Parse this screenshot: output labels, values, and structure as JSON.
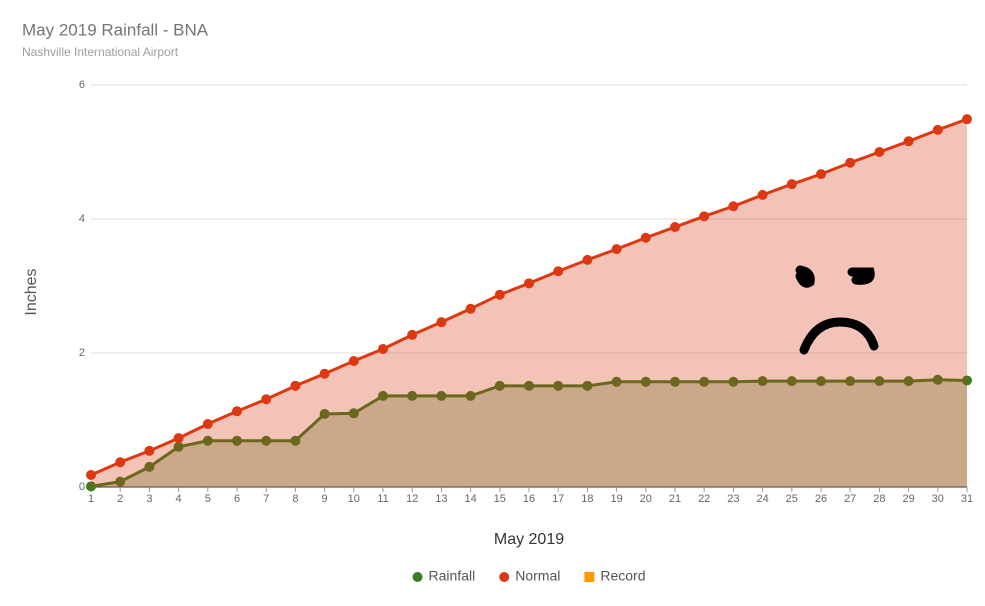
{
  "chart_data": {
    "type": "area",
    "title": "May 2019 Rainfall - BNA",
    "subtitle": "Nashville International Airport",
    "x_label": "May 2019",
    "y_label": "Inches",
    "x": [
      1,
      2,
      3,
      4,
      5,
      6,
      7,
      8,
      9,
      10,
      11,
      12,
      13,
      14,
      15,
      16,
      17,
      18,
      19,
      20,
      21,
      22,
      23,
      24,
      25,
      26,
      27,
      28,
      29,
      30,
      31
    ],
    "xlim": [
      1,
      31
    ],
    "xticks": [
      1,
      2,
      3,
      4,
      5,
      6,
      7,
      8,
      9,
      10,
      11,
      12,
      13,
      14,
      15,
      16,
      17,
      18,
      19,
      20,
      21,
      22,
      23,
      24,
      25,
      26,
      27,
      28,
      29,
      30,
      31
    ],
    "ylim": [
      0,
      6
    ],
    "yticks": [
      0,
      2,
      4,
      6
    ],
    "grid": true,
    "legend": "bottom",
    "series": [
      {
        "name": "Rainfall",
        "color": "#3b7d23",
        "values": [
          0.01,
          0.08,
          0.3,
          0.6,
          0.69,
          0.69,
          0.69,
          0.69,
          1.09,
          1.1,
          1.36,
          1.36,
          1.36,
          1.36,
          1.51,
          1.51,
          1.51,
          1.51,
          1.57,
          1.57,
          1.57,
          1.57,
          1.57,
          1.58,
          1.58,
          1.58,
          1.58,
          1.58,
          1.58,
          1.6,
          1.59
        ]
      },
      {
        "name": "Normal",
        "color": "#dc3912",
        "values": [
          0.18,
          0.37,
          0.54,
          0.73,
          0.94,
          1.13,
          1.31,
          1.51,
          1.69,
          1.88,
          2.06,
          2.27,
          2.46,
          2.66,
          2.87,
          3.04,
          3.22,
          3.39,
          3.55,
          3.72,
          3.88,
          4.04,
          4.19,
          4.36,
          4.52,
          4.67,
          4.84,
          5.0,
          5.16,
          5.33,
          5.49
        ]
      },
      {
        "name": "Record",
        "color": "#ff9900",
        "values": [
          null,
          null,
          null,
          null,
          null,
          null,
          null,
          null,
          null,
          null,
          null,
          null,
          null,
          null,
          null,
          null,
          null,
          null,
          null,
          null,
          null,
          null,
          null,
          null,
          null,
          null,
          null,
          null,
          null,
          null,
          null
        ]
      }
    ]
  }
}
